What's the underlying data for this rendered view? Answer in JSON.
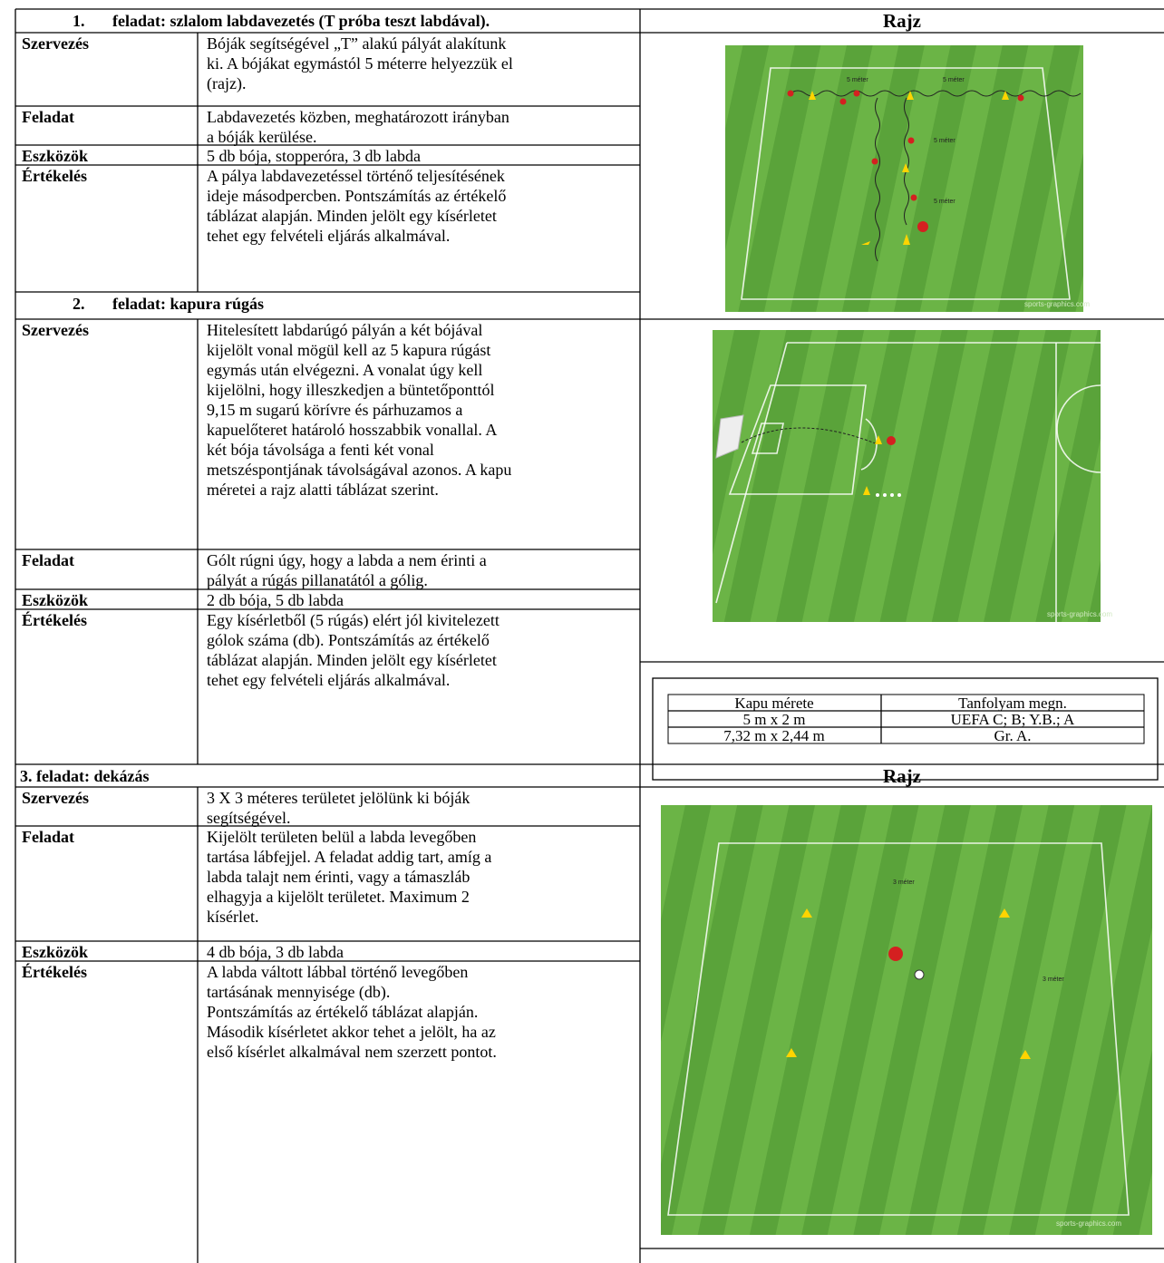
{
  "sections": [
    {
      "number": "1.",
      "title": "feladat: szlalom labdavezetés (T próba teszt labdával).",
      "drawing_title": "Rajz",
      "rows": [
        {
          "label": "Szervezés",
          "lines": [
            "Bóják segítségével „T” alakú pályát alakítunk",
            "ki. A bójákat egymástól 5 méterre helyezzük el",
            "(rajz)."
          ]
        },
        {
          "label": "Feladat",
          "lines": [
            "Labdavezetés közben, meghatározott irányban",
            "a bóják kerülése."
          ]
        },
        {
          "label": "Eszközök",
          "lines": [
            "5 db bója, stopperóra, 3 db labda"
          ]
        },
        {
          "label": "Értékelés",
          "lines": [
            "A pálya labdavezetéssel történő teljesítésének",
            "ideje másodpercben. Pontszámítás az értékelő",
            "táblázat alapján. Minden jelölt egy kísérletet",
            "tehet egy felvételi eljárás alkalmával."
          ]
        }
      ]
    },
    {
      "number": "2.",
      "title": "feladat: kapura rúgás",
      "rows": [
        {
          "label": "Szervezés",
          "lines": [
            "Hitelesített labdarúgó pályán a két bójával",
            "kijelölt vonal mögül kell az 5 kapura rúgást",
            "egymás után elvégezni. A vonalat úgy kell",
            "kijelölni, hogy illeszkedjen a büntetőponttól",
            "9,15 m sugarú körívre és párhuzamos a",
            "kapuelőteret határoló hosszabbik vonallal. A",
            "két bója távolsága a fenti két vonal",
            "metszéspontjának távolságával azonos. A kapu",
            "méretei a rajz alatti táblázat szerint."
          ]
        },
        {
          "label": "Feladat",
          "lines": [
            "Gólt rúgni úgy, hogy a labda a nem érinti a",
            "pályát a rúgás pillanatától a gólig."
          ]
        },
        {
          "label": "Eszközök",
          "lines": [
            "2 db bója, 5 db labda"
          ]
        },
        {
          "label": "Értékelés",
          "lines": [
            "Egy kísérletből (5 rúgás) elért jól kivitelezett",
            "gólok száma (db). Pontszámítás az értékelő",
            "táblázat alapján. Minden jelölt egy kísérletet",
            "tehet egy felvételi eljárás alkalmával."
          ]
        }
      ]
    },
    {
      "title": "3. feladat: dekázás",
      "drawing_title": "Rajz",
      "rows": [
        {
          "label": "Szervezés",
          "lines": [
            "3 X 3 méteres területet jelölünk ki bóják",
            "segítségével."
          ]
        },
        {
          "label": "Feladat",
          "lines": [
            "Kijelölt területen belül a labda levegőben",
            "tartása lábfejjel. A feladat addig tart, amíg a",
            "labda talajt nem érinti, vagy a támaszláb",
            "elhagyja a kijelölt területet. Maximum 2",
            "kísérlet."
          ]
        },
        {
          "label": "Eszközök",
          "lines": [
            "4 db bója, 3 db labda"
          ]
        },
        {
          "label": "Értékelés",
          "lines": [
            "A labda váltott lábbal történő levegőben",
            "tartásának mennyisége (db).",
            "Pontszámítás az értékelő táblázat alapján.",
            "Második kísérletet akkor tehet a jelölt, ha az",
            "első kísérlet alkalmával nem szerzett pontot."
          ]
        }
      ]
    }
  ],
  "images": [
    {
      "labels": [
        "5 méter",
        "5 méter",
        "5 méter",
        "5 méter"
      ],
      "credit": "sports-graphics.com"
    },
    {
      "credit": "sports-graphics.com"
    },
    {
      "labels": [
        "3 méter",
        "3 méter"
      ],
      "credit": "sports-graphics.com"
    }
  ],
  "goal_table": {
    "header": [
      "Kapu mérete",
      "Tanfolyam megn."
    ],
    "rows": [
      [
        "5 m x 2 m",
        "UEFA C; B; Y.B.; A"
      ],
      [
        "7,32 m x 2,44 m",
        "Gr. A."
      ]
    ]
  }
}
